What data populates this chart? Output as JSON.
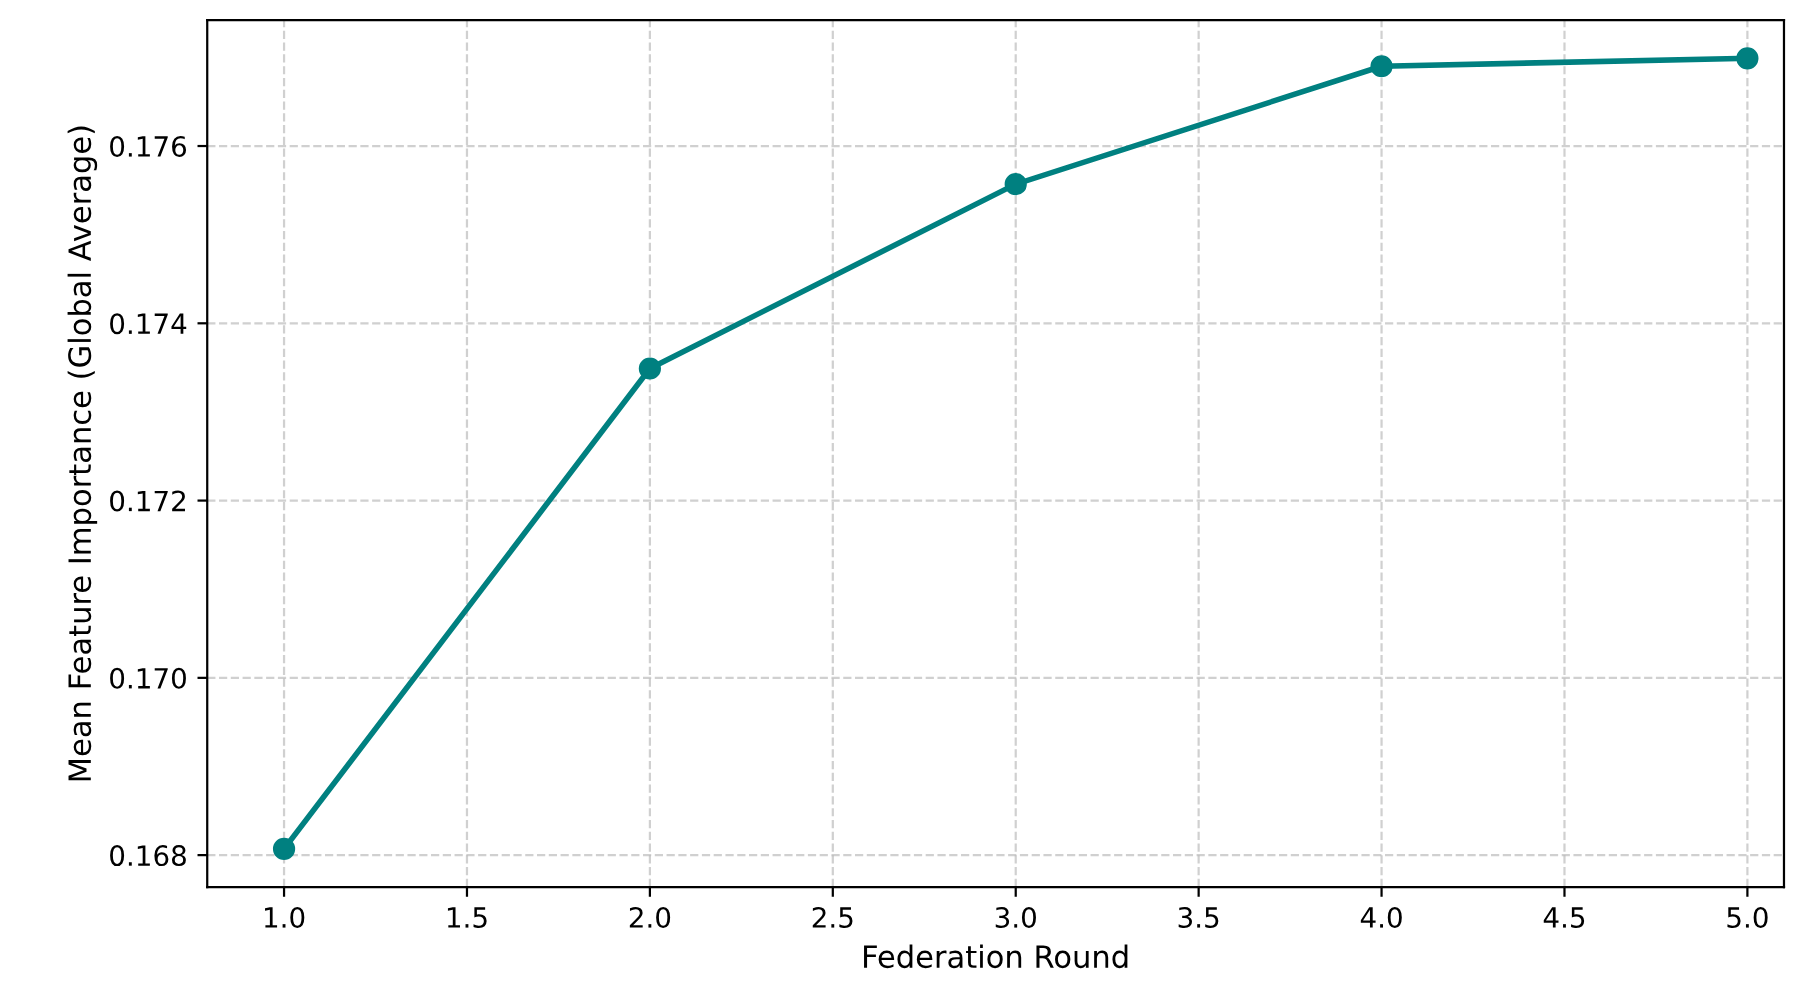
{
  "chart_data": {
    "type": "line",
    "xlabel": "Federation Round",
    "ylabel": "Mean Feature Importance (Global Average)",
    "x": [
      1,
      2,
      3,
      4,
      5
    ],
    "series": [
      {
        "color": "#008080",
        "values": [
          0.16807,
          0.17349,
          0.17557,
          0.1769,
          0.17699
        ]
      }
    ],
    "xlim": [
      0.79,
      5.1
    ],
    "ylim": [
      0.16764,
      0.17742
    ],
    "xticks": [
      {
        "value": 1,
        "label": "1.0"
      },
      {
        "value": 1.5,
        "label": "1.5"
      },
      {
        "value": 2,
        "label": "2.0"
      },
      {
        "value": 2.5,
        "label": "2.5"
      },
      {
        "value": 3,
        "label": "3.0"
      },
      {
        "value": 3.5,
        "label": "3.5"
      },
      {
        "value": 4,
        "label": "4.0"
      },
      {
        "value": 4.5,
        "label": "4.5"
      },
      {
        "value": 5,
        "label": "5.0"
      }
    ],
    "yticks": [
      {
        "value": 0.168,
        "label": "0.168"
      },
      {
        "value": 0.17,
        "label": "0.170"
      },
      {
        "value": 0.172,
        "label": "0.172"
      },
      {
        "value": 0.174,
        "label": "0.174"
      },
      {
        "value": 0.176,
        "label": "0.176"
      }
    ],
    "grid": true,
    "marker": "circle",
    "line_style": "solid"
  }
}
